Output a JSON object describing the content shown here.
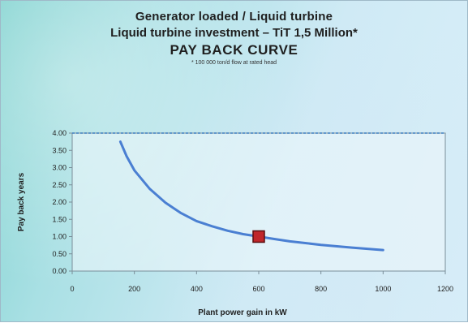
{
  "colors": {
    "line": "#4a7fd2",
    "marker": "#c0262b",
    "gridline": "#3f7fbf",
    "plot_background": "#eef8fb",
    "axis": "#7a8e99"
  },
  "chart_data": {
    "type": "line",
    "title": "Generator loaded / Liquid turbine",
    "subtitle": "Liquid turbine investment – TiT 1,5 Million*",
    "chart_label": "PAY BACK CURVE",
    "note": "* 100 000 ton/d flow at rated head",
    "xlabel": "Plant power gain in kW",
    "ylabel": "Pay back years",
    "xlim": [
      0,
      1200
    ],
    "ylim": [
      0,
      4
    ],
    "xticks": [
      0,
      200,
      400,
      600,
      800,
      1000,
      1200
    ],
    "yticks": [
      "0.00",
      "0.50",
      "1.00",
      "1.50",
      "2.00",
      "2.50",
      "3.00",
      "3.50",
      "4.00"
    ],
    "grid": "top gridline only",
    "series": [
      {
        "x": [
          155,
          175,
          200,
          250,
          300,
          350,
          400,
          450,
          500,
          550,
          600,
          650,
          700,
          800,
          900,
          1000
        ],
        "y": [
          3.75,
          3.33,
          2.92,
          2.38,
          1.98,
          1.68,
          1.45,
          1.3,
          1.17,
          1.07,
          1.0,
          0.93,
          0.86,
          0.76,
          0.68,
          0.61
        ]
      }
    ],
    "highlight_point": {
      "x": 600,
      "y": 1.0
    }
  }
}
